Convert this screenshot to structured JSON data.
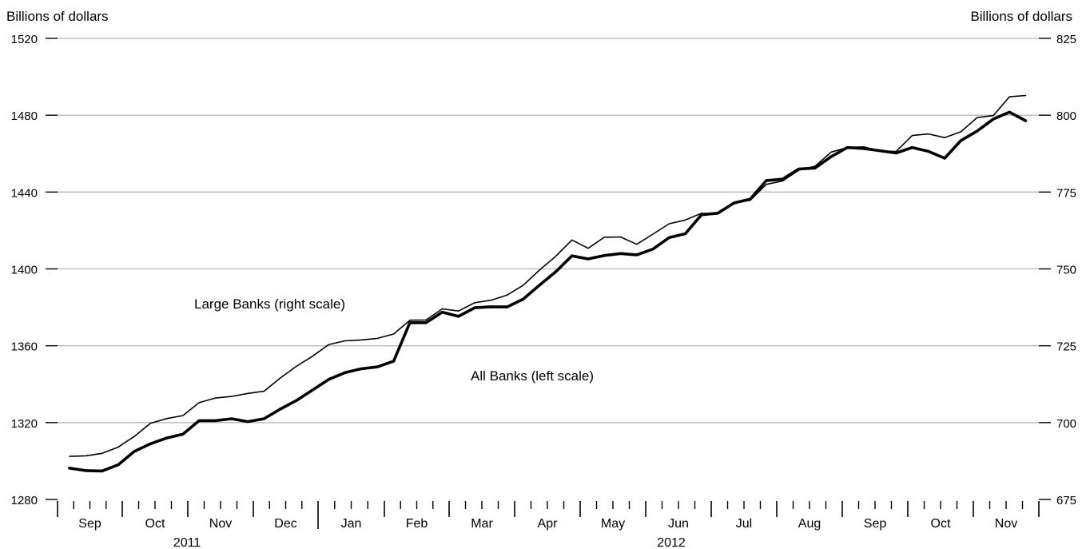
{
  "chart_data": {
    "type": "line",
    "title": "",
    "left_axis": {
      "unit_label": "Billions of dollars",
      "ylim": [
        1280,
        1520
      ],
      "ticks": [
        1280,
        1320,
        1360,
        1400,
        1440,
        1480,
        1520
      ]
    },
    "right_axis": {
      "unit_label": "Billions of dollars",
      "ylim": [
        675,
        825
      ],
      "ticks": [
        675,
        700,
        725,
        750,
        775,
        800,
        825
      ]
    },
    "x_axis": {
      "months": [
        "Sep",
        "Oct",
        "Nov",
        "Dec",
        "Jan",
        "Feb",
        "Mar",
        "Apr",
        "May",
        "Jun",
        "Jul",
        "Aug",
        "Sep",
        "Oct",
        "Nov"
      ],
      "years": [
        {
          "label": "2011"
        },
        {
          "label": "2012"
        }
      ],
      "weekly_ticks": true
    },
    "grid": true,
    "annotations": [
      {
        "text": "Large Banks (right scale)",
        "series": "Large Banks"
      },
      {
        "text": "All Banks (left scale)",
        "series": "All Banks"
      }
    ],
    "series": [
      {
        "name": "Large Banks",
        "axis": "right",
        "line_weight": "thin",
        "values": [
          689.0,
          689.2,
          690.0,
          692.0,
          695.5,
          699.8,
          701.3,
          702.3,
          706.5,
          708.0,
          708.5,
          709.5,
          710.2,
          714.5,
          718.3,
          721.6,
          725.4,
          726.6,
          726.9,
          727.4,
          728.8,
          733.3,
          733.4,
          737.0,
          736.3,
          739.0,
          739.8,
          741.5,
          744.7,
          749.6,
          754.1,
          759.4,
          756.7,
          760.3,
          760.4,
          758.0,
          761.3,
          764.7,
          765.9,
          768.1,
          767.9,
          771.7,
          772.3,
          777.5,
          778.6,
          782.1,
          783.4,
          788.0,
          789.5,
          789.7,
          788.4,
          788.2,
          793.4,
          793.9,
          792.7,
          794.6,
          799.2,
          799.9,
          806.0,
          806.4
        ]
      },
      {
        "name": "All Banks",
        "axis": "left",
        "line_weight": "thick",
        "values": [
          1296.3,
          1295.0,
          1294.8,
          1298.0,
          1305.0,
          1309.0,
          1312.0,
          1314.0,
          1321.0,
          1321.0,
          1322.0,
          1320.5,
          1322.0,
          1327.0,
          1331.5,
          1337.0,
          1342.5,
          1346.0,
          1348.0,
          1349.0,
          1352.0,
          1372.0,
          1372.0,
          1377.5,
          1375.3,
          1379.8,
          1380.3,
          1380.2,
          1384.3,
          1391.5,
          1398.5,
          1406.8,
          1405.2,
          1407.0,
          1408.0,
          1407.3,
          1410.3,
          1416.3,
          1418.3,
          1428.2,
          1429.0,
          1434.3,
          1436.3,
          1446.0,
          1446.7,
          1452.0,
          1452.5,
          1458.5,
          1463.2,
          1462.7,
          1461.5,
          1460.3,
          1463.2,
          1461.2,
          1457.6,
          1466.8,
          1471.7,
          1478.0,
          1481.6,
          1477.1
        ]
      }
    ]
  }
}
